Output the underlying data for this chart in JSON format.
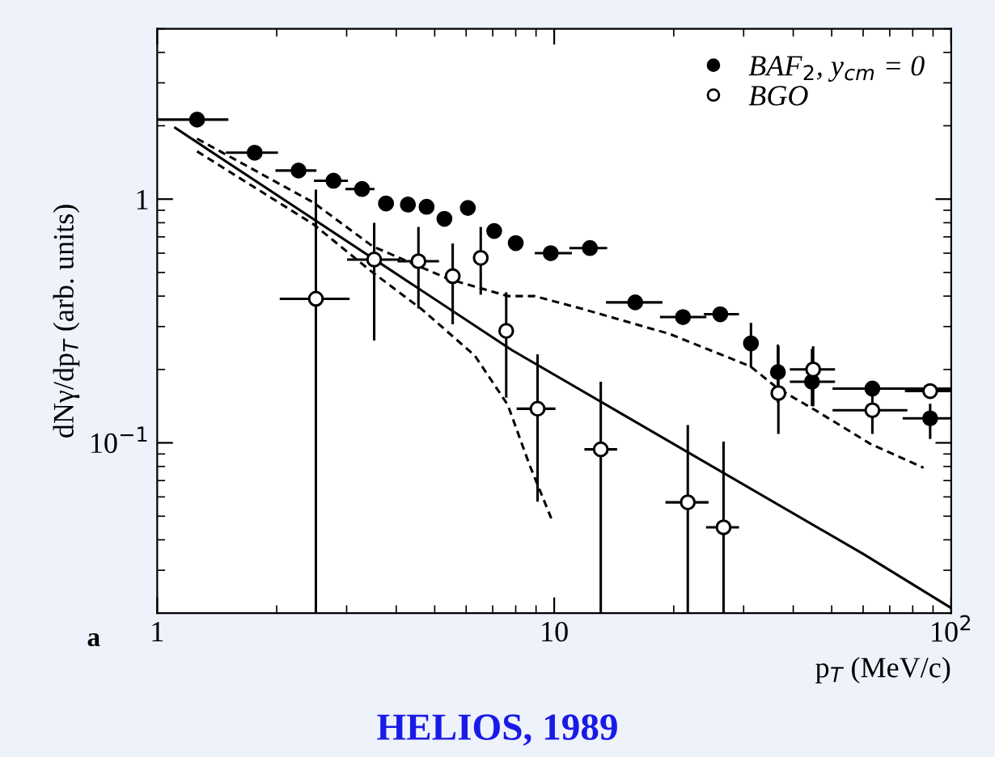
{
  "chart_data": {
    "type": "scatter",
    "title": "HELIOS, 1989",
    "xlabel": "p$_{T}$ (MeV/c)",
    "ylabel": "dNγ/dp$_{T}$ (arb. units)",
    "annotations": [
      "a"
    ],
    "log": "xy",
    "xlim": [
      1,
      100
    ],
    "ylim": [
      0.02,
      5
    ],
    "xticks": [
      1,
      10,
      {
        "value": 100,
        "label": "10$^{2}$"
      }
    ],
    "yticks": [
      {
        "value": 0.1,
        "label": "10$^{−1}$"
      },
      1
    ],
    "grid": false,
    "legend": "top right",
    "series": [
      {
        "name": "BAF$_{2}$, y$_{cm}$ = 0",
        "color": "#000000",
        "marker": "circle",
        "x": [
          1.26,
          1.76,
          2.27,
          2.78,
          3.28,
          3.77,
          4.28,
          4.77,
          5.29,
          6.06,
          7.06,
          8.0,
          9.8,
          12.3,
          16.0,
          21.1,
          26.2,
          31.3,
          36.6,
          44.6,
          63.3,
          88.5
        ],
        "values": [
          2.12,
          1.55,
          1.31,
          1.19,
          1.1,
          0.96,
          0.95,
          0.93,
          0.83,
          0.92,
          0.74,
          0.66,
          0.6,
          0.63,
          0.377,
          0.328,
          0.337,
          0.256,
          0.195,
          0.178,
          0.167,
          0.126
        ],
        "errors": [
          null,
          null,
          null,
          null,
          null,
          null,
          null,
          null,
          null,
          null,
          null,
          null,
          null,
          null,
          null,
          null,
          null,
          [
            0.206,
            0.307
          ],
          [
            0.148,
            0.25
          ],
          [
            0.143,
            0.24
          ],
          null,
          [
            0.105,
            0.143
          ]
        ],
        "xerrors": [
          [
            1.0,
            1.5
          ],
          [
            1.5,
            2.0
          ],
          [
            2.0,
            2.5
          ],
          [
            2.5,
            3.0
          ],
          [
            3.0,
            3.5
          ],
          null,
          null,
          null,
          null,
          null,
          null,
          null,
          [
            9.0,
            11.0
          ],
          [
            11.0,
            13.5
          ],
          [
            13.6,
            18.6
          ],
          [
            18.6,
            24.0
          ],
          [
            24.0,
            29.0
          ],
          null,
          null,
          [
            39.5,
            50.6
          ],
          [
            50.6,
            100
          ],
          [
            76,
            100
          ]
        ]
      },
      {
        "name": "BGO",
        "color": "#ffffff",
        "marker": "circle",
        "x": [
          2.51,
          3.52,
          4.55,
          5.55,
          6.53,
          7.57,
          9.08,
          13.1,
          21.7,
          26.7,
          36.7,
          44.9,
          63.3,
          88.5
        ],
        "values": [
          0.39,
          0.565,
          0.556,
          0.483,
          0.574,
          0.288,
          0.138,
          0.094,
          0.057,
          0.045,
          0.16,
          0.2,
          0.136,
          0.163
        ],
        "errors": [
          [
            0.02,
            1.08
          ],
          [
            0.266,
            0.79
          ],
          [
            0.36,
            0.76
          ],
          [
            0.31,
            0.65
          ],
          [
            0.41,
            0.76
          ],
          [
            0.155,
            0.41
          ],
          [
            0.058,
            0.228
          ],
          [
            0.02,
            0.176
          ],
          [
            0.02,
            0.117
          ],
          [
            0.02,
            0.1
          ],
          [
            0.11,
            0.246
          ],
          [
            0.143,
            0.246
          ],
          [
            0.11,
            0.16
          ],
          null
        ],
        "xerrors": [
          [
            2.05,
            3.03
          ],
          [
            3.03,
            4.06
          ],
          [
            4.06,
            5.09
          ],
          null,
          null,
          null,
          [
            8.1,
            10.0
          ],
          [
            12.0,
            14.3
          ],
          [
            19.2,
            24.3
          ],
          [
            24.3,
            29.0
          ],
          null,
          [
            39.5,
            50.6
          ],
          [
            50.6,
            77
          ],
          [
            77,
            100
          ]
        ]
      },
      {
        "type": "line",
        "color": "#000000",
        "line_style": "solid",
        "x": [
          1.11,
          7.83,
          60,
          100
        ],
        "values": [
          1.96,
          0.24,
          0.035,
          0.021
        ]
      },
      {
        "type": "line",
        "color": "#000000",
        "line_style": "dashed",
        "x": [
          1.26,
          2.47,
          3.49,
          5.42,
          7.64,
          8.93,
          11.8,
          19.5,
          31.2,
          36.6,
          45.5,
          62.6,
          85.2
        ],
        "values": [
          1.77,
          0.97,
          0.64,
          0.47,
          0.4,
          0.4,
          0.354,
          0.28,
          0.206,
          0.167,
          0.136,
          0.099,
          0.079
        ]
      },
      {
        "type": "line",
        "color": "#000000",
        "line_style": "dashed",
        "x": [
          1.26,
          2.47,
          3.49,
          4.63,
          6.31,
          7.64,
          8.67,
          9.83
        ],
        "values": [
          1.57,
          0.79,
          0.5,
          0.354,
          0.228,
          0.143,
          0.081,
          0.049
        ]
      }
    ]
  }
}
